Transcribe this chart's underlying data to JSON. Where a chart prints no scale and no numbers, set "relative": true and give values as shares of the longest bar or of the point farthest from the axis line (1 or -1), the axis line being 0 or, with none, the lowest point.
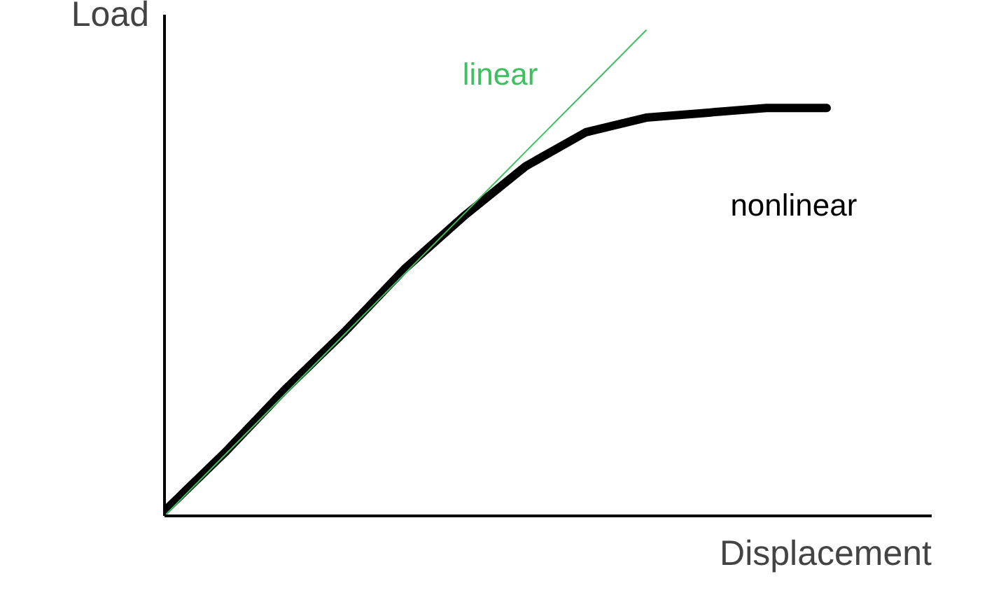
{
  "chart_data": {
    "type": "line",
    "relative": true,
    "xlabel": "Displacement",
    "ylabel": "Load",
    "categories": [
      null,
      null,
      null,
      null,
      null,
      null,
      null,
      null,
      null,
      null,
      null,
      null
    ],
    "series": [
      {
        "name": "linear",
        "color": "#3fbf5f",
        "values": [
          0,
          0.125,
          0.25,
          0.375,
          0.5,
          0.625,
          0.75,
          0.875,
          1.0,
          null,
          null,
          null
        ]
      },
      {
        "name": "nonlinear",
        "color": "#000000",
        "values": [
          0.01,
          0.13,
          0.26,
          0.38,
          0.51,
          0.62,
          0.72,
          0.79,
          0.82,
          0.83,
          0.84,
          0.84
        ]
      }
    ],
    "grid": false,
    "marker": "none",
    "line_style": "solid"
  }
}
